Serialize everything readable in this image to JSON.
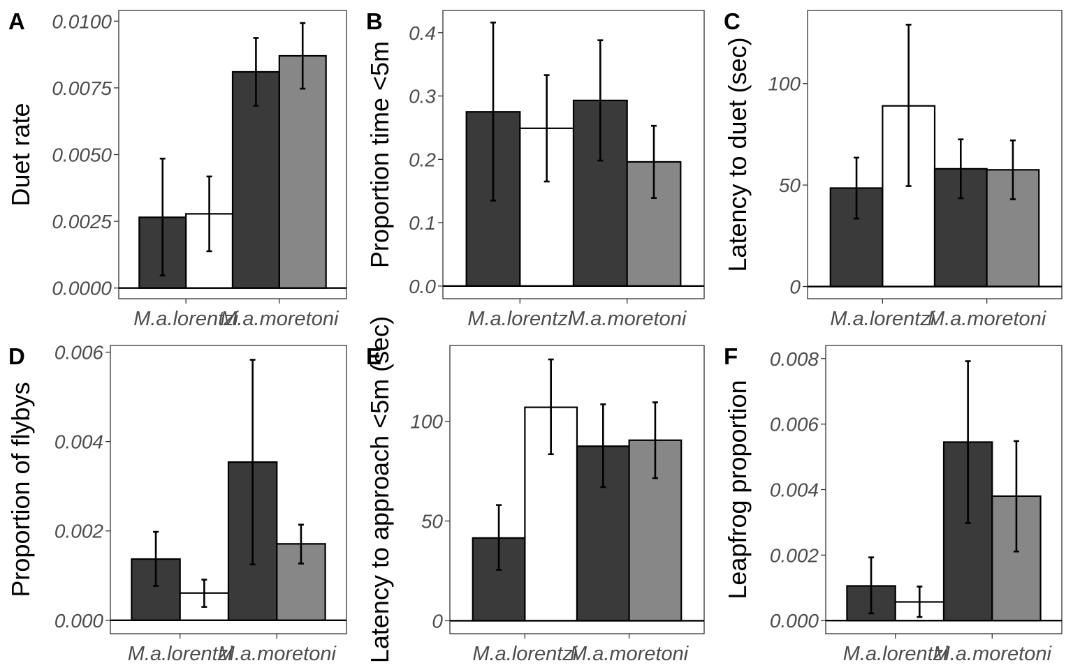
{
  "colors": {
    "lorentzi_treatment": "#3a3a3a",
    "lorentzi_control": "#ffffff",
    "moretoni_treatment": "#3a3a3a",
    "moretoni_control": "#878787",
    "outline": "#000000"
  },
  "chart_data": [
    {
      "panel": "A",
      "type": "bar",
      "ylabel": "Duet rate",
      "ylim": [
        -0.0004,
        0.0104
      ],
      "yticks": [
        0,
        0.0025,
        0.005,
        0.0075,
        0.01
      ],
      "ytick_labels": [
        "0.0000",
        "0.0025",
        "0.0050",
        "0.0075",
        "0.0100"
      ],
      "categories": [
        "M.a.lorentzi",
        "M.a.moretoni"
      ],
      "grid": false,
      "bars": [
        {
          "category": "M.a.lorentzi",
          "value": 0.00265,
          "err_low": 0.00047,
          "err_high": 0.00485,
          "fill": "#3a3a3a"
        },
        {
          "category": "M.a.lorentzi",
          "value": 0.00278,
          "err_low": 0.00138,
          "err_high": 0.00418,
          "fill": "#ffffff"
        },
        {
          "category": "M.a.moretoni",
          "value": 0.0081,
          "err_low": 0.00683,
          "err_high": 0.00937,
          "fill": "#3a3a3a"
        },
        {
          "category": "M.a.moretoni",
          "value": 0.0087,
          "err_low": 0.00747,
          "err_high": 0.00993,
          "fill": "#878787"
        }
      ]
    },
    {
      "panel": "B",
      "type": "bar",
      "ylabel": "Proportion time <5m",
      "ylim": [
        -0.02,
        0.435
      ],
      "yticks": [
        0,
        0.1,
        0.2,
        0.3,
        0.4
      ],
      "ytick_labels": [
        "0.0",
        "0.1",
        "0.2",
        "0.3",
        "0.4"
      ],
      "categories": [
        "M.a.lorentzi",
        "M.a.moretoni"
      ],
      "grid": false,
      "bars": [
        {
          "category": "M.a.lorentzi",
          "value": 0.275,
          "err_low": 0.135,
          "err_high": 0.416,
          "fill": "#3a3a3a"
        },
        {
          "category": "M.a.lorentzi",
          "value": 0.249,
          "err_low": 0.165,
          "err_high": 0.333,
          "fill": "#ffffff"
        },
        {
          "category": "M.a.moretoni",
          "value": 0.293,
          "err_low": 0.198,
          "err_high": 0.388,
          "fill": "#3a3a3a"
        },
        {
          "category": "M.a.moretoni",
          "value": 0.196,
          "err_low": 0.139,
          "err_high": 0.253,
          "fill": "#878787"
        }
      ]
    },
    {
      "panel": "C",
      "type": "bar",
      "ylabel": "Latency to duet (sec)",
      "ylim": [
        -6,
        136
      ],
      "yticks": [
        0,
        50,
        100
      ],
      "ytick_labels": [
        "0",
        "50",
        "100"
      ],
      "categories": [
        "M.a.lorentzi",
        "M.a.moretoni"
      ],
      "grid": false,
      "bars": [
        {
          "category": "M.a.lorentzi",
          "value": 48.5,
          "err_low": 33.5,
          "err_high": 63.5,
          "fill": "#3a3a3a"
        },
        {
          "category": "M.a.lorentzi",
          "value": 89,
          "err_low": 49.5,
          "err_high": 129,
          "fill": "#ffffff"
        },
        {
          "category": "M.a.moretoni",
          "value": 58,
          "err_low": 43.5,
          "err_high": 72.5,
          "fill": "#3a3a3a"
        },
        {
          "category": "M.a.moretoni",
          "value": 57.5,
          "err_low": 43,
          "err_high": 72,
          "fill": "#878787"
        }
      ]
    },
    {
      "panel": "D",
      "type": "bar",
      "ylabel": "Proportion of flybys",
      "ylim": [
        -0.0003,
        0.00615
      ],
      "yticks": [
        0,
        0.002,
        0.004,
        0.006
      ],
      "ytick_labels": [
        "0.000",
        "0.002",
        "0.004",
        "0.006"
      ],
      "categories": [
        "M.a.lorentzi",
        "M.a.moretoni"
      ],
      "grid": false,
      "bars": [
        {
          "category": "M.a.lorentzi",
          "value": 0.00137,
          "err_low": 0.00077,
          "err_high": 0.00198,
          "fill": "#3a3a3a"
        },
        {
          "category": "M.a.lorentzi",
          "value": 0.00061,
          "err_low": 0.0003,
          "err_high": 0.00091,
          "fill": "#ffffff"
        },
        {
          "category": "M.a.moretoni",
          "value": 0.00354,
          "err_low": 0.00125,
          "err_high": 0.00583,
          "fill": "#3a3a3a"
        },
        {
          "category": "M.a.moretoni",
          "value": 0.00171,
          "err_low": 0.00127,
          "err_high": 0.00214,
          "fill": "#878787"
        }
      ]
    },
    {
      "panel": "E",
      "type": "bar",
      "ylabel": "Latency to approach <5m (sec)",
      "ylim": [
        -6.5,
        138
      ],
      "yticks": [
        0,
        50,
        100
      ],
      "ytick_labels": [
        "0",
        "50",
        "100"
      ],
      "categories": [
        "M.a.lorentzi",
        "M.a.moretoni"
      ],
      "grid": false,
      "bars": [
        {
          "category": "M.a.lorentzi",
          "value": 41.5,
          "err_low": 25.5,
          "err_high": 58,
          "fill": "#3a3a3a"
        },
        {
          "category": "M.a.lorentzi",
          "value": 107,
          "err_low": 83.5,
          "err_high": 131,
          "fill": "#ffffff"
        },
        {
          "category": "M.a.moretoni",
          "value": 87.5,
          "err_low": 67,
          "err_high": 108.5,
          "fill": "#3a3a3a"
        },
        {
          "category": "M.a.moretoni",
          "value": 90.5,
          "err_low": 71.5,
          "err_high": 109.5,
          "fill": "#878787"
        }
      ]
    },
    {
      "panel": "F",
      "type": "bar",
      "ylabel": "Leapfrog proportion",
      "ylim": [
        -0.0004,
        0.0084
      ],
      "yticks": [
        0,
        0.002,
        0.004,
        0.006,
        0.008
      ],
      "ytick_labels": [
        "0.000",
        "0.002",
        "0.004",
        "0.006",
        "0.008"
      ],
      "categories": [
        "M.a.lorentzi",
        "M.a.moretoni"
      ],
      "grid": false,
      "bars": [
        {
          "category": "M.a.lorentzi",
          "value": 0.00106,
          "err_low": 0.00022,
          "err_high": 0.00193,
          "fill": "#3a3a3a"
        },
        {
          "category": "M.a.lorentzi",
          "value": 0.00057,
          "err_low": 0.00011,
          "err_high": 0.00104,
          "fill": "#ffffff"
        },
        {
          "category": "M.a.moretoni",
          "value": 0.00545,
          "err_low": 0.00298,
          "err_high": 0.00792,
          "fill": "#3a3a3a"
        },
        {
          "category": "M.a.moretoni",
          "value": 0.0038,
          "err_low": 0.00211,
          "err_high": 0.00548,
          "fill": "#878787"
        }
      ]
    }
  ]
}
